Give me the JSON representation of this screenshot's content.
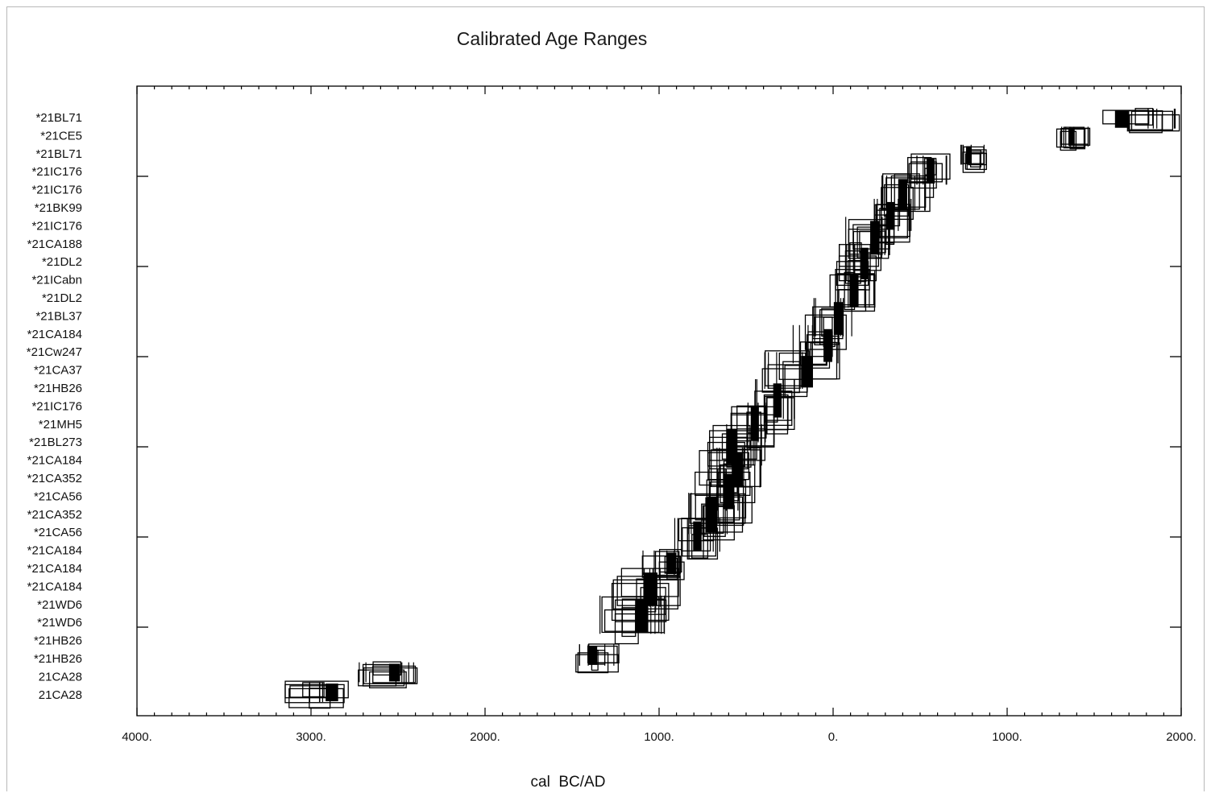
{
  "chart_data": {
    "type": "range",
    "title": "Calibrated Age Ranges",
    "xlabel": "cal  BC/AD",
    "ylabel": "",
    "xlim": [
      -4000,
      2000
    ],
    "x_ticks": [
      {
        "value": -4000,
        "label": "4000."
      },
      {
        "value": -3000,
        "label": "3000."
      },
      {
        "value": -2000,
        "label": "2000."
      },
      {
        "value": -1000,
        "label": "1000."
      },
      {
        "value": 0,
        "label": "0."
      },
      {
        "value": 1000,
        "label": "1000."
      },
      {
        "value": 2000,
        "label": "2000."
      }
    ],
    "y_labels": [
      "*21BL71",
      "*21CE5",
      "*21BL71",
      "*21IC176",
      "*21IC176",
      "*21BK99",
      "*21IC176",
      "*21CA188",
      "*21DL2",
      "*21ICabn",
      "*21DL2",
      "*21BL37",
      "*21CA184",
      "*21Cw247",
      "*21CA37",
      "*21HB26",
      "*21IC176",
      "*21MH5",
      "*21BL273",
      "*21CA184",
      "*21CA352",
      "*21CA56",
      "*21CA352",
      "*21CA56",
      "*21CA184",
      "*21CA184",
      "*21CA184",
      "*21WD6",
      "*21WD6",
      "*21HB26",
      "*21HB26",
      "21CA28",
      "21CA28"
    ],
    "series": [
      {
        "lo": 1550,
        "hi": 2000,
        "center": 1660,
        "row_start": 0,
        "row_span": 1.4
      },
      {
        "lo": 1280,
        "hi": 1480,
        "center": 1370,
        "row_start": 1,
        "row_span": 1.4
      },
      {
        "lo": 720,
        "hi": 900,
        "center": 780,
        "row_start": 2,
        "row_span": 1.4
      },
      {
        "lo": 420,
        "hi": 680,
        "center": 560,
        "row_start": 2.6,
        "row_span": 2
      },
      {
        "lo": 270,
        "hi": 560,
        "center": 400,
        "row_start": 3.7,
        "row_span": 2.4
      },
      {
        "lo": 200,
        "hi": 470,
        "center": 330,
        "row_start": 5,
        "row_span": 2.2
      },
      {
        "lo": 50,
        "hi": 350,
        "center": 240,
        "row_start": 6,
        "row_span": 2.6
      },
      {
        "lo": 20,
        "hi": 270,
        "center": 180,
        "row_start": 7.5,
        "row_span": 2.5
      },
      {
        "lo": -40,
        "hi": 250,
        "center": 120,
        "row_start": 9,
        "row_span": 2.5
      },
      {
        "lo": -170,
        "hi": 120,
        "center": 30,
        "row_start": 10.5,
        "row_span": 2.6
      },
      {
        "lo": -230,
        "hi": 50,
        "center": -30,
        "row_start": 12,
        "row_span": 2.6
      },
      {
        "lo": -410,
        "hi": -30,
        "center": -150,
        "row_start": 13.5,
        "row_span": 2.5
      },
      {
        "lo": -480,
        "hi": -210,
        "center": -320,
        "row_start": 15,
        "row_span": 2.7
      },
      {
        "lo": -590,
        "hi": -330,
        "center": -450,
        "row_start": 16.3,
        "row_span": 2.7
      },
      {
        "lo": -720,
        "hi": -380,
        "center": -580,
        "row_start": 17.5,
        "row_span": 2.8
      },
      {
        "lo": -770,
        "hi": -410,
        "center": -550,
        "row_start": 18.8,
        "row_span": 2.7
      },
      {
        "lo": -800,
        "hi": -440,
        "center": -600,
        "row_start": 20,
        "row_span": 2.8
      },
      {
        "lo": -850,
        "hi": -470,
        "center": -700,
        "row_start": 21.3,
        "row_span": 2.8
      },
      {
        "lo": -920,
        "hi": -650,
        "center": -780,
        "row_start": 22.7,
        "row_span": 2.3
      },
      {
        "lo": -1100,
        "hi": -770,
        "center": -930,
        "row_start": 24.5,
        "row_span": 1.7
      },
      {
        "lo": -1280,
        "hi": -830,
        "center": -1050,
        "row_start": 25.5,
        "row_span": 2.6
      },
      {
        "lo": -1370,
        "hi": -950,
        "center": -1100,
        "row_start": 27,
        "row_span": 2.6
      },
      {
        "lo": -1500,
        "hi": -1230,
        "center": -1380,
        "row_start": 29.7,
        "row_span": 1.5
      },
      {
        "lo": -2730,
        "hi": -2380,
        "center": -2520,
        "row_start": 30.7,
        "row_span": 1.4
      },
      {
        "lo": -3170,
        "hi": -2770,
        "center": -2880,
        "row_start": 31.8,
        "row_span": 1.4
      }
    ]
  }
}
